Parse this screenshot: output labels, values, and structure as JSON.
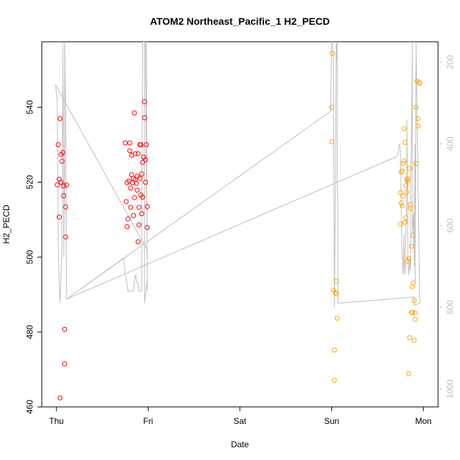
{
  "chart_data": {
    "type": "scatter",
    "title": "ATOM2 Northeast_Pacific_1 H2_PECD",
    "xlabel": "Date",
    "ylabel": "H2_PECD",
    "x_ticks": [
      {
        "label": "Thu",
        "value": 0
      },
      {
        "label": "Fri",
        "value": 1
      },
      {
        "label": "Sat",
        "value": 2
      },
      {
        "label": "Sun",
        "value": 3
      },
      {
        "label": "Mon",
        "value": 4
      }
    ],
    "xlim": [
      -0.16,
      4.16
    ],
    "ylim": [
      460,
      557.5
    ],
    "y_ticks": [
      460,
      480,
      500,
      520,
      540
    ],
    "y2_ticks": [
      200,
      400,
      600,
      800,
      1000
    ],
    "y2lim": [
      1044,
      150
    ],
    "series": [
      {
        "color": "#ff0000",
        "points": [
          [
            0.01,
            519.3
          ],
          [
            0.02,
            530.0
          ],
          [
            0.03,
            520.8
          ],
          [
            0.03,
            510.7
          ],
          [
            0.04,
            537.0
          ],
          [
            0.05,
            527.4
          ],
          [
            0.05,
            520.0
          ],
          [
            0.06,
            525.6
          ],
          [
            0.07,
            527.9
          ],
          [
            0.08,
            519.0
          ],
          [
            0.08,
            516.4
          ],
          [
            0.09,
            480.7
          ],
          [
            0.09,
            471.5
          ],
          [
            0.1,
            513.4
          ],
          [
            0.1,
            505.4
          ],
          [
            0.11,
            519.3
          ],
          [
            0.04,
            462.4
          ],
          [
            0.75,
            530.5
          ],
          [
            0.76,
            514.8
          ],
          [
            0.77,
            508.1
          ],
          [
            0.77,
            519.9
          ],
          [
            0.78,
            510.2
          ],
          [
            0.79,
            520.3
          ],
          [
            0.8,
            530.5
          ],
          [
            0.8,
            528.4
          ],
          [
            0.81,
            518.4
          ],
          [
            0.81,
            513.3
          ],
          [
            0.82,
            522.0
          ],
          [
            0.82,
            527.2
          ],
          [
            0.83,
            519.9
          ],
          [
            0.84,
            521.0
          ],
          [
            0.84,
            511.1
          ],
          [
            0.85,
            515.9
          ],
          [
            0.85,
            538.5
          ],
          [
            0.86,
            527.6
          ],
          [
            0.86,
            520.7
          ],
          [
            0.87,
            519.7
          ],
          [
            0.88,
            521.6
          ],
          [
            0.88,
            517.9
          ],
          [
            0.89,
            504.1
          ],
          [
            0.89,
            527.6
          ],
          [
            0.9,
            508.6
          ],
          [
            0.9,
            513.3
          ],
          [
            0.91,
            530.0
          ],
          [
            0.91,
            521.0
          ],
          [
            0.92,
            530.0
          ],
          [
            0.92,
            516.6
          ],
          [
            0.93,
            522.2
          ],
          [
            0.93,
            511.6
          ],
          [
            0.94,
            525.3
          ],
          [
            0.94,
            516.0
          ],
          [
            0.95,
            526.7
          ],
          [
            0.96,
            541.5
          ],
          [
            0.96,
            537.2
          ],
          [
            0.97,
            526.0
          ],
          [
            0.97,
            520.0
          ],
          [
            0.98,
            530.0
          ],
          [
            0.99,
            513.5
          ],
          [
            0.99,
            507.9
          ]
        ]
      },
      {
        "color": "#ffa500",
        "points": [
          [
            3.0,
            530.8
          ],
          [
            3.0,
            540.0
          ],
          [
            3.01,
            554.4
          ],
          [
            3.02,
            491.2
          ],
          [
            3.03,
            475.2
          ],
          [
            3.03,
            467.1
          ],
          [
            3.04,
            490.5
          ],
          [
            3.05,
            493.5
          ],
          [
            3.05,
            490.2
          ],
          [
            3.06,
            483.7
          ],
          [
            3.75,
            508.8
          ],
          [
            3.75,
            517.2
          ],
          [
            3.76,
            522.7
          ],
          [
            3.76,
            514.5
          ],
          [
            3.77,
            523.0
          ],
          [
            3.77,
            513.7
          ],
          [
            3.78,
            525.0
          ],
          [
            3.78,
            516.3
          ],
          [
            3.79,
            525.7
          ],
          [
            3.79,
            534.3
          ],
          [
            3.8,
            530.6
          ],
          [
            3.8,
            509.3
          ],
          [
            3.81,
            519.1
          ],
          [
            3.81,
            510.5
          ],
          [
            3.82,
            520.7
          ],
          [
            3.82,
            517.4
          ],
          [
            3.83,
            521.0
          ],
          [
            3.83,
            520.3
          ],
          [
            3.83,
            498.9
          ],
          [
            3.84,
            499.6
          ],
          [
            3.84,
            468.9
          ],
          [
            3.85,
            523.7
          ],
          [
            3.85,
            478.5
          ],
          [
            3.86,
            513.0
          ],
          [
            3.86,
            514.0
          ],
          [
            3.87,
            502.9
          ],
          [
            3.87,
            485.2
          ],
          [
            3.88,
            485.2
          ],
          [
            3.88,
            492.1
          ],
          [
            3.89,
            505.8
          ],
          [
            3.89,
            493.1
          ],
          [
            3.9,
            488.4
          ],
          [
            3.9,
            477.8
          ],
          [
            3.91,
            485.1
          ],
          [
            3.91,
            483.4
          ],
          [
            3.92,
            525.0
          ],
          [
            3.92,
            540.0
          ],
          [
            3.93,
            547.0
          ],
          [
            3.94,
            535.0
          ],
          [
            3.94,
            537.0
          ],
          [
            3.95,
            546.7
          ],
          [
            3.96,
            546.4
          ]
        ]
      }
    ],
    "trace": {
      "color": "#bebebe",
      "axis": "right",
      "points": [
        [
          -0.01,
          255
        ],
        [
          0.01,
          300
        ],
        [
          0.02,
          650
        ],
        [
          0.03,
          740
        ],
        [
          0.04,
          790
        ],
        [
          0.05,
          720
        ],
        [
          0.06,
          660
        ],
        [
          0.07,
          250
        ],
        [
          0.07,
          150
        ],
        [
          0.08,
          520
        ],
        [
          0.08,
          680
        ],
        [
          0.09,
          450
        ],
        [
          0.09,
          150
        ],
        [
          0.1,
          320
        ],
        [
          0.11,
          780
        ],
        [
          2.99,
          320
        ],
        [
          3.0,
          150
        ],
        [
          3.01,
          150
        ],
        [
          3.02,
          220
        ],
        [
          3.03,
          800
        ],
        [
          3.04,
          540
        ],
        [
          3.05,
          150
        ],
        [
          3.05,
          200
        ],
        [
          3.06,
          150
        ],
        [
          3.06,
          350
        ],
        [
          3.06,
          500
        ],
        [
          3.07,
          560
        ],
        [
          3.07,
          790
        ],
        [
          3.9,
          775
        ],
        [
          3.9,
          795
        ],
        [
          3.96,
          790
        ],
        [
          3.92,
          150
        ],
        [
          3.92,
          200
        ],
        [
          3.91,
          740
        ],
        [
          3.91,
          400
        ],
        [
          3.9,
          600
        ],
        [
          3.9,
          700
        ],
        [
          3.89,
          570
        ],
        [
          3.88,
          620
        ],
        [
          3.88,
          150
        ],
        [
          3.87,
          400
        ],
        [
          3.86,
          500
        ],
        [
          3.86,
          710
        ],
        [
          3.85,
          680
        ],
        [
          3.84,
          720
        ],
        [
          3.83,
          680
        ],
        [
          3.83,
          580
        ],
        [
          3.82,
          340
        ],
        [
          3.82,
          520
        ],
        [
          3.81,
          620
        ],
        [
          3.8,
          720
        ],
        [
          3.79,
          680
        ],
        [
          3.79,
          620
        ],
        [
          3.78,
          720
        ],
        [
          3.77,
          680
        ],
        [
          3.76,
          560
        ],
        [
          3.75,
          460
        ],
        [
          3.75,
          420
        ],
        [
          3.74,
          400
        ],
        [
          3.73,
          410
        ],
        [
          3.72,
          430
        ],
        [
          0.11,
          780
        ],
        [
          0.73,
          680
        ],
        [
          0.74,
          700
        ],
        [
          0.75,
          720
        ],
        [
          0.76,
          730
        ],
        [
          0.78,
          760
        ],
        [
          0.79,
          760
        ],
        [
          0.82,
          760
        ],
        [
          0.84,
          760
        ],
        [
          0.85,
          740
        ],
        [
          0.86,
          720
        ],
        [
          0.88,
          740
        ],
        [
          0.89,
          740
        ],
        [
          0.9,
          760
        ],
        [
          0.92,
          760
        ],
        [
          0.93,
          760
        ],
        [
          0.93,
          580
        ],
        [
          0.94,
          150
        ],
        [
          0.96,
          150
        ],
        [
          0.96,
          620
        ],
        [
          0.96,
          790
        ],
        [
          0.98,
          750
        ],
        [
          0.99,
          730
        ],
        [
          0.97,
          150
        ],
        [
          0.98,
          150
        ],
        [
          0.99,
          760
        ],
        [
          0.99,
          740
        ],
        [
          0.99,
          660
        ],
        [
          -0.01,
          255
        ]
      ]
    }
  }
}
